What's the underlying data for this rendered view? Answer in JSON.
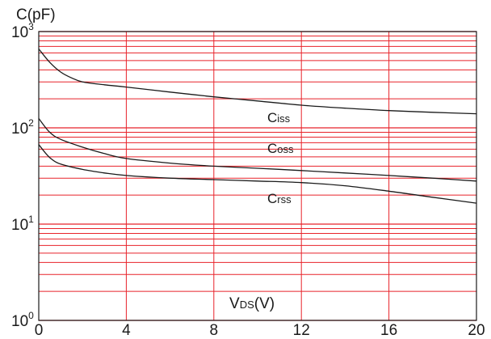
{
  "chart_data": {
    "type": "line",
    "x_scale": "linear",
    "y_scale": "log",
    "xlim": [
      0,
      20
    ],
    "ylim": [
      1,
      1000
    ],
    "x_ticks": [
      "0",
      "4",
      "8",
      "12",
      "16",
      "20"
    ],
    "y_ticks": [
      {
        "base": "10",
        "exp": "0",
        "value": 1
      },
      {
        "base": "10",
        "exp": "1",
        "value": 10
      },
      {
        "base": "10",
        "exp": "2",
        "value": 100
      },
      {
        "base": "10",
        "exp": "3",
        "value": 1000
      }
    ],
    "ylabel": "C(pF)",
    "xlabel": {
      "main": "V",
      "sub": "DS",
      "rest": "(V)"
    },
    "grid": true,
    "colors": {
      "grid": "#e8232a",
      "curve": "#1a1a1a",
      "axis": "#1a1a1a"
    },
    "series": [
      {
        "name": {
          "main": "C",
          "sub": "iss"
        },
        "x": [
          0,
          0.5,
          1,
          1.5,
          2,
          3,
          4,
          6,
          8,
          10,
          12,
          14,
          16,
          18,
          20
        ],
        "y": [
          660,
          480,
          380,
          330,
          300,
          280,
          265,
          235,
          210,
          190,
          172,
          160,
          151,
          145,
          140
        ]
      },
      {
        "name": {
          "main": "C",
          "sub": "oss"
        },
        "x": [
          0,
          0.5,
          1,
          2,
          3,
          4,
          6,
          8,
          10,
          12,
          14,
          16,
          18,
          20
        ],
        "y": [
          125,
          90,
          76,
          63,
          54,
          48,
          43,
          40,
          38,
          36,
          34,
          32,
          30,
          28
        ]
      },
      {
        "name": {
          "main": "C",
          "sub": "rss"
        },
        "x": [
          0,
          0.3,
          0.6,
          1,
          2,
          3,
          4,
          6,
          8,
          10,
          12,
          14,
          16,
          18,
          20
        ],
        "y": [
          67,
          55,
          47,
          42,
          37,
          34,
          32,
          30,
          29,
          28,
          27,
          25,
          22,
          19,
          16.5
        ]
      }
    ]
  }
}
